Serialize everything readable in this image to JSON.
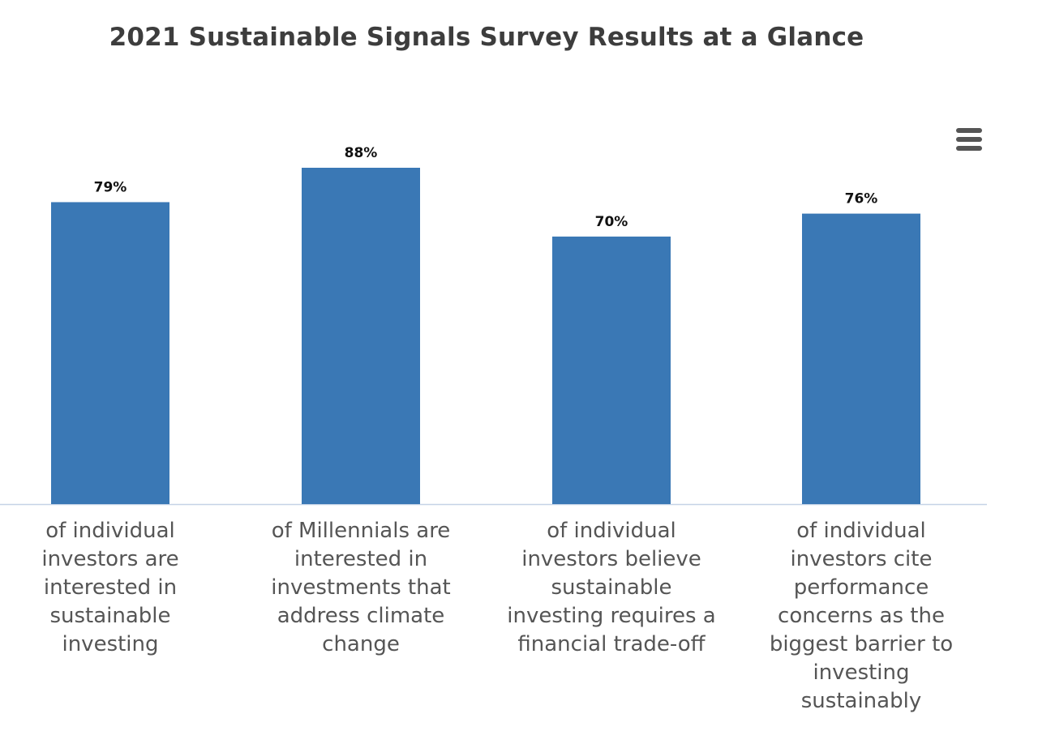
{
  "chart_data": {
    "type": "bar",
    "title": "2021 Sustainable Signals Survey Results at a Glance",
    "categories": [
      "of individual investors are interested in sustainable investing",
      "of Millennials are interested in investments that address climate change",
      "of individual investors believe sustainable investing requires a financial trade-off",
      "of individual investors cite performance concerns as the biggest barrier to investing sustainably"
    ],
    "values": [
      79,
      88,
      70,
      76
    ],
    "data_labels": [
      "79%",
      "88%",
      "70%",
      "76%"
    ],
    "ylim": [
      0,
      100
    ],
    "grid": false,
    "legend": "none",
    "bar_color": "#3a78b5",
    "axis_color": "#c5d3e6"
  },
  "menu": {
    "icon": "hamburger-menu-icon"
  }
}
